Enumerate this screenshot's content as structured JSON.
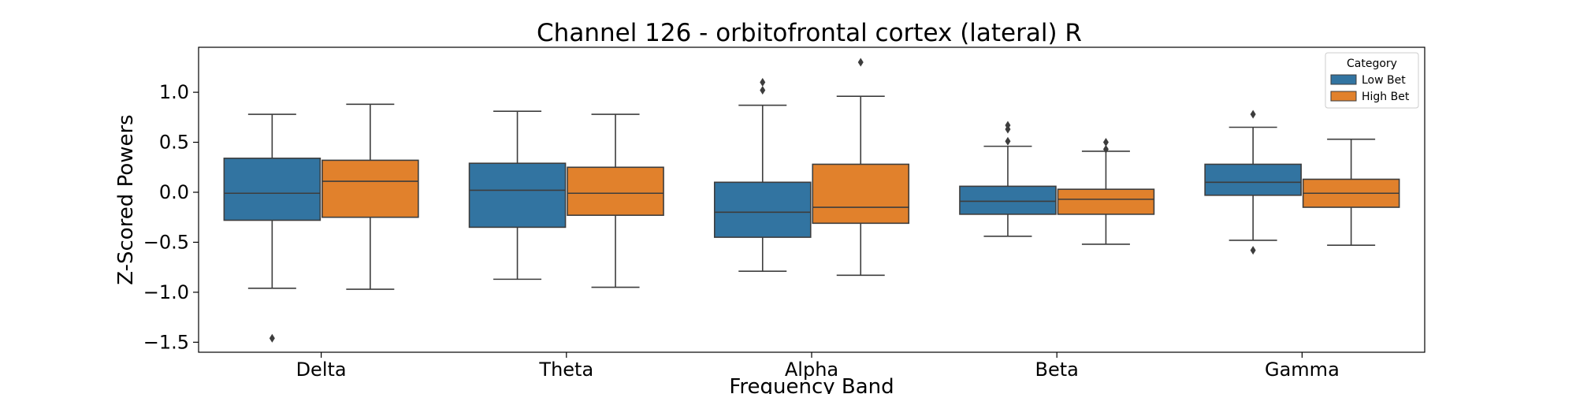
{
  "chart_data": {
    "type": "box",
    "title": "Channel 126 - orbitofrontal cortex (lateral) R",
    "xlabel": "Frequency Band",
    "ylabel": "Z-Scored Powers",
    "ylim": [
      -1.6,
      1.45
    ],
    "yticks": [
      1.0,
      0.5,
      0.0,
      -0.5,
      -1.0,
      -1.5
    ],
    "ytick_labels": [
      "1.0",
      "0.5",
      "0.0",
      "−0.5",
      "−1.0",
      "−1.5"
    ],
    "categories": [
      "Delta",
      "Theta",
      "Alpha",
      "Beta",
      "Gamma"
    ],
    "legend": {
      "title": "Category",
      "placement": "top-right"
    },
    "grid": false,
    "series": [
      {
        "name": "Low Bet",
        "color": "#3274a1",
        "boxes": [
          {
            "whisker_low": -0.96,
            "q1": -0.28,
            "median": -0.01,
            "q3": 0.34,
            "whisker_high": 0.78,
            "outliers": [
              -1.46
            ]
          },
          {
            "whisker_low": -0.87,
            "q1": -0.35,
            "median": 0.02,
            "q3": 0.29,
            "whisker_high": 0.81,
            "outliers": []
          },
          {
            "whisker_low": -0.79,
            "q1": -0.45,
            "median": -0.2,
            "q3": 0.1,
            "whisker_high": 0.87,
            "outliers": [
              1.02,
              1.1
            ]
          },
          {
            "whisker_low": -0.44,
            "q1": -0.22,
            "median": -0.09,
            "q3": 0.06,
            "whisker_high": 0.46,
            "outliers": [
              0.51,
              0.63,
              0.67
            ]
          },
          {
            "whisker_low": -0.48,
            "q1": -0.03,
            "median": 0.1,
            "q3": 0.28,
            "whisker_high": 0.65,
            "outliers": [
              -0.58,
              0.78
            ]
          }
        ]
      },
      {
        "name": "High Bet",
        "color": "#e1812c",
        "boxes": [
          {
            "whisker_low": -0.97,
            "q1": -0.25,
            "median": 0.11,
            "q3": 0.32,
            "whisker_high": 0.88,
            "outliers": []
          },
          {
            "whisker_low": -0.95,
            "q1": -0.23,
            "median": -0.01,
            "q3": 0.25,
            "whisker_high": 0.78,
            "outliers": []
          },
          {
            "whisker_low": -0.83,
            "q1": -0.31,
            "median": -0.15,
            "q3": 0.28,
            "whisker_high": 0.96,
            "outliers": [
              1.3
            ]
          },
          {
            "whisker_low": -0.52,
            "q1": -0.22,
            "median": -0.07,
            "q3": 0.03,
            "whisker_high": 0.41,
            "outliers": [
              0.43,
              0.5
            ]
          },
          {
            "whisker_low": -0.53,
            "q1": -0.15,
            "median": -0.01,
            "q3": 0.13,
            "whisker_high": 0.53,
            "outliers": []
          }
        ]
      }
    ]
  }
}
